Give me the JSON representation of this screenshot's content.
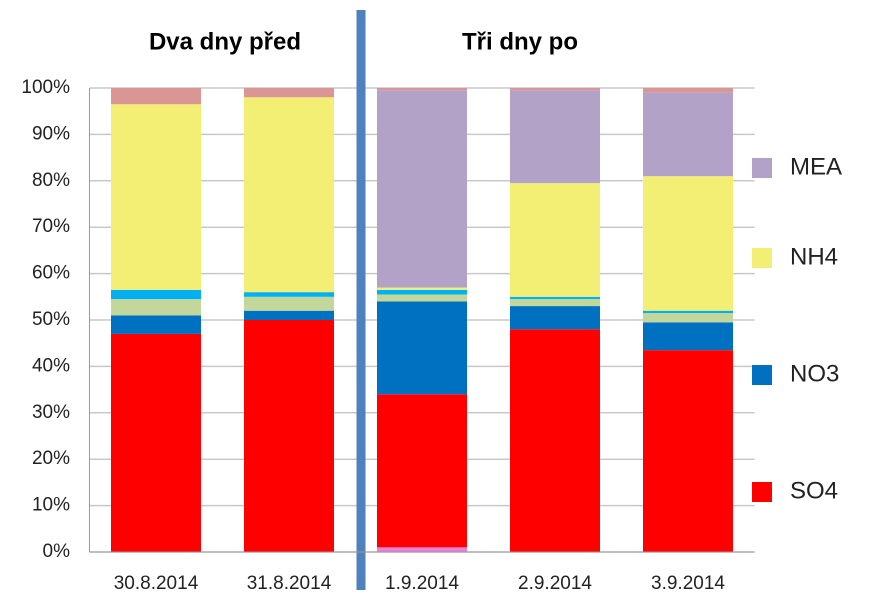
{
  "chart_data": {
    "type": "stacked_bar",
    "annotations": [
      "Dva dny před",
      "Tři dny po"
    ],
    "categories": [
      "30.8.2014",
      "31.8.2014",
      "1.9.2014",
      "2.9.2014",
      "3.9.2014"
    ],
    "series": [
      {
        "color": "#e87fd8",
        "values": [
          0,
          0,
          1,
          0,
          0
        ]
      },
      {
        "name": "SO4",
        "color": "#ff0000",
        "values": [
          47,
          50,
          33,
          48,
          43.5
        ]
      },
      {
        "name": "NO3",
        "color": "#0070c0",
        "values": [
          4,
          2,
          20,
          5,
          6
        ]
      },
      {
        "color": "#c4d79b",
        "values": [
          3.5,
          3,
          1.5,
          1.5,
          2
        ]
      },
      {
        "color": "#00b0f0",
        "values": [
          2,
          1,
          1,
          0.5,
          0.5
        ]
      },
      {
        "name": "NH4",
        "color": "#f3ef75",
        "values": [
          40,
          42,
          0.5,
          24.5,
          29
        ]
      },
      {
        "name": "MEA",
        "color": "#b3a2c7",
        "values": [
          0,
          0,
          42.5,
          20,
          18
        ]
      },
      {
        "color": "#d99694",
        "values": [
          3.5,
          2,
          0.5,
          0.5,
          1
        ]
      }
    ],
    "ylim": [
      0,
      100
    ],
    "yticks": [
      {
        "value": 0,
        "label": "0%"
      },
      {
        "value": 10,
        "label": "10%"
      },
      {
        "value": 20,
        "label": "20%"
      },
      {
        "value": 30,
        "label": "30%"
      },
      {
        "value": 40,
        "label": "40%"
      },
      {
        "value": 50,
        "label": "50%"
      },
      {
        "value": 60,
        "label": "60%"
      },
      {
        "value": 70,
        "label": "70%"
      },
      {
        "value": 80,
        "label": "80%"
      },
      {
        "value": 90,
        "label": "90%"
      },
      {
        "value": 100,
        "label": "100%"
      }
    ],
    "grid": true,
    "legend": "right"
  }
}
